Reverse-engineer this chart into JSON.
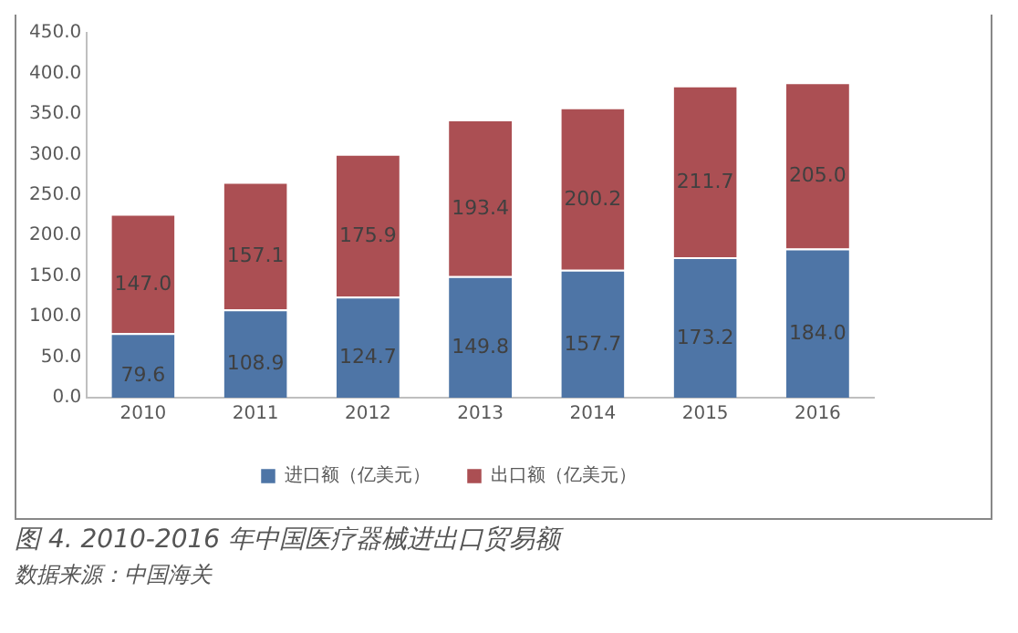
{
  "chart_data": {
    "type": "bar",
    "stacked": true,
    "title": "图 4. 2010-2016 年中国医疗器械进出口贸易额",
    "annotations": [
      "数据来源：中国海关"
    ],
    "categories": [
      "2010",
      "2011",
      "2012",
      "2013",
      "2014",
      "2015",
      "2016"
    ],
    "series": [
      {
        "name": "进口额（亿美元）",
        "color": "#4e75a6",
        "values": [
          79.6,
          108.9,
          124.7,
          149.8,
          157.7,
          173.2,
          184.0
        ],
        "value_labels": [
          "79.6",
          "108.9",
          "124.7",
          "149.8",
          "157.7",
          "173.2",
          "184.0"
        ]
      },
      {
        "name": "出口额（亿美元）",
        "color": "#ab4f53",
        "values": [
          147.0,
          157.1,
          175.9,
          193.4,
          200.2,
          211.7,
          205.0
        ],
        "value_labels": [
          "147.0",
          "157.1",
          "175.9",
          "193.4",
          "200.2",
          "211.7",
          "205.0"
        ]
      }
    ],
    "ylim": [
      0,
      450
    ],
    "yticks": [
      {
        "value": 0,
        "label": "0.0"
      },
      {
        "value": 50,
        "label": "50.0"
      },
      {
        "value": 100,
        "label": "100.0"
      },
      {
        "value": 150,
        "label": "150.0"
      },
      {
        "value": 200,
        "label": "200.0"
      },
      {
        "value": 250,
        "label": "250.0"
      },
      {
        "value": 300,
        "label": "300.0"
      },
      {
        "value": 350,
        "label": "350.0"
      },
      {
        "value": 400,
        "label": "400.0"
      },
      {
        "value": 450,
        "label": "450.0"
      }
    ],
    "grid": false,
    "legend": "bottom"
  }
}
